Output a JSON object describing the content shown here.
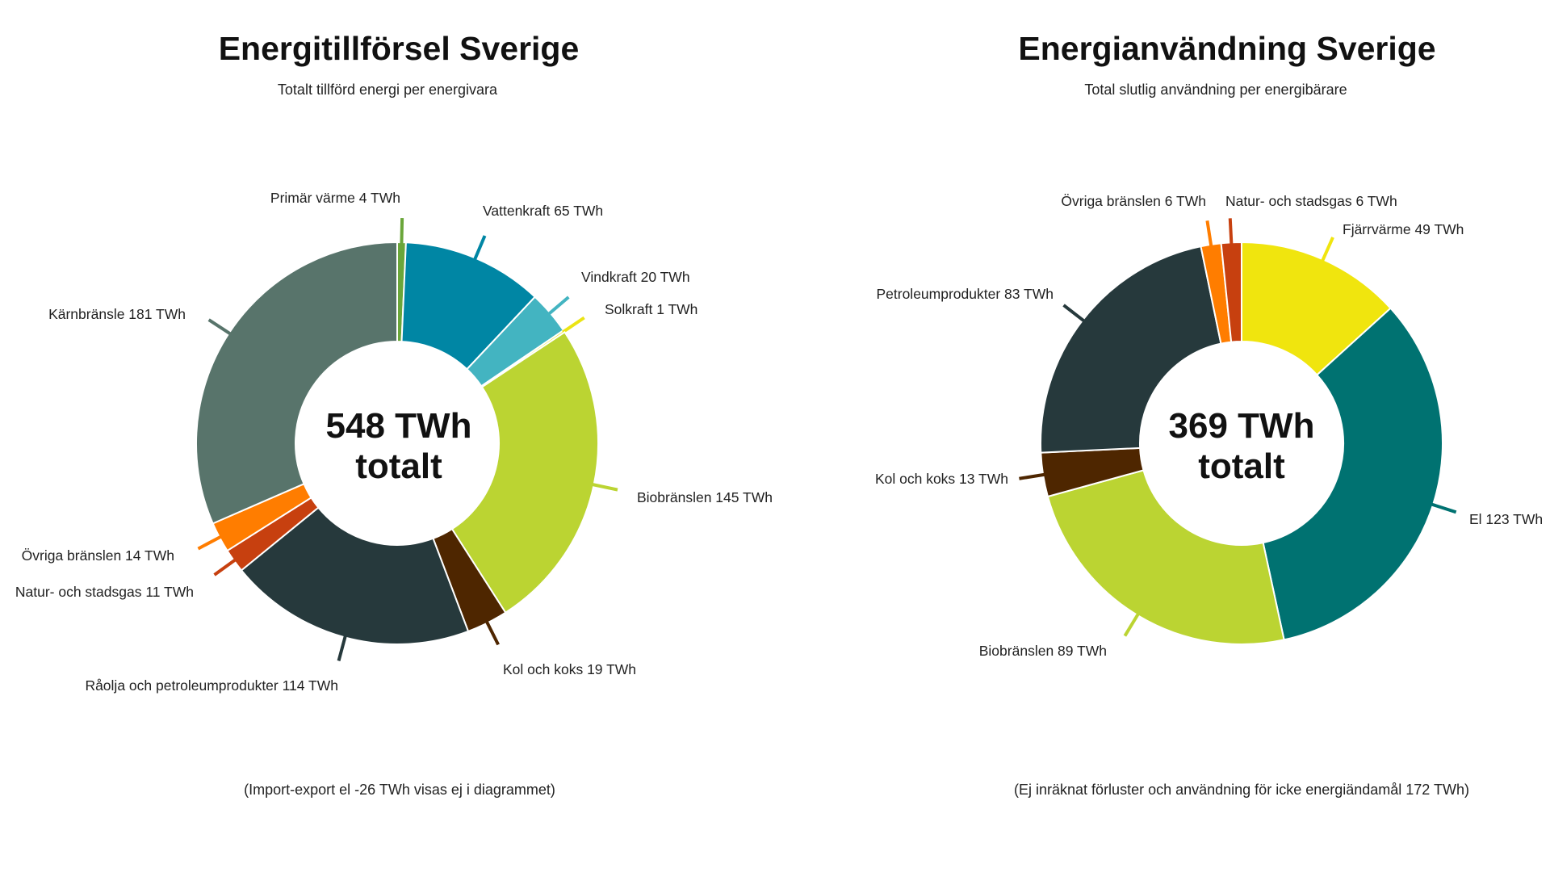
{
  "chart_data": [
    {
      "type": "pie",
      "title": "Energitillförsel Sverige",
      "subtitle": "Totalt tillförd energi per energivara",
      "unit": "TWh",
      "center_value": "548 TWh",
      "center_label": "totalt",
      "footnote": "(Import-export el -26 TWh visas ej i diagrammet)",
      "slices": [
        {
          "name": "Primär värme",
          "value": 4,
          "label": "Primär värme 4 TWh",
          "color": "#6aa63a"
        },
        {
          "name": "Vattenkraft",
          "value": 65,
          "label": "Vattenkraft 65 TWh",
          "color": "#0086a4"
        },
        {
          "name": "Vindkraft",
          "value": 20,
          "label": "Vindkraft 20 TWh",
          "color": "#43b4c1"
        },
        {
          "name": "Solkraft",
          "value": 1,
          "label": "Solkraft 1 TWh",
          "color": "#ebe414"
        },
        {
          "name": "Biobränslen",
          "value": 145,
          "label": "Biobränslen 145 TWh",
          "color": "#bbd432"
        },
        {
          "name": "Kol och koks",
          "value": 19,
          "label": "Kol och koks 19 TWh",
          "color": "#4e2600"
        },
        {
          "name": "Råolja och petroleumprodukter",
          "value": 114,
          "label": "Råolja och petroleumprodukter 114 TWh",
          "color": "#26393c"
        },
        {
          "name": "Natur- och stadsgas",
          "value": 11,
          "label": "Natur- och stadsgas 11 TWh",
          "color": "#c7400f"
        },
        {
          "name": "Övriga bränslen",
          "value": 14,
          "label": "Övriga bränslen 14 TWh",
          "color": "#ff7d00"
        },
        {
          "name": "Kärnbränsle",
          "value": 181,
          "label": "Kärnbränsle 181 TWh",
          "color": "#58746b"
        }
      ]
    },
    {
      "type": "pie",
      "title": "Energianvändning Sverige",
      "subtitle": "Total slutlig användning per energibärare",
      "unit": "TWh",
      "center_value": "369 TWh",
      "center_label": "totalt",
      "footnote": "(Ej inräknat förluster och användning för icke energiändamål 172 TWh)",
      "slices": [
        {
          "name": "Fjärrvärme",
          "value": 49,
          "label": "Fjärrvärme 49 TWh",
          "color": "#f0e50e"
        },
        {
          "name": "El",
          "value": 123,
          "label": "El 123 TWh",
          "color": "#007271"
        },
        {
          "name": "Biobränslen",
          "value": 89,
          "label": "Biobränslen 89 TWh",
          "color": "#bbd432"
        },
        {
          "name": "Kol och koks",
          "value": 13,
          "label": "Kol och koks 13 TWh",
          "color": "#4e2600"
        },
        {
          "name": "Petroleumprodukter",
          "value": 83,
          "label": "Petroleumprodukter 83 TWh",
          "color": "#26393c"
        },
        {
          "name": "Övriga bränslen",
          "value": 6,
          "label": "Övriga bränslen 6 TWh",
          "color": "#ff7d00"
        },
        {
          "name": "Natur- och stadsgas",
          "value": 6,
          "label": "Natur- och stadsgas 6 TWh",
          "color": "#c7400f"
        }
      ]
    }
  ]
}
